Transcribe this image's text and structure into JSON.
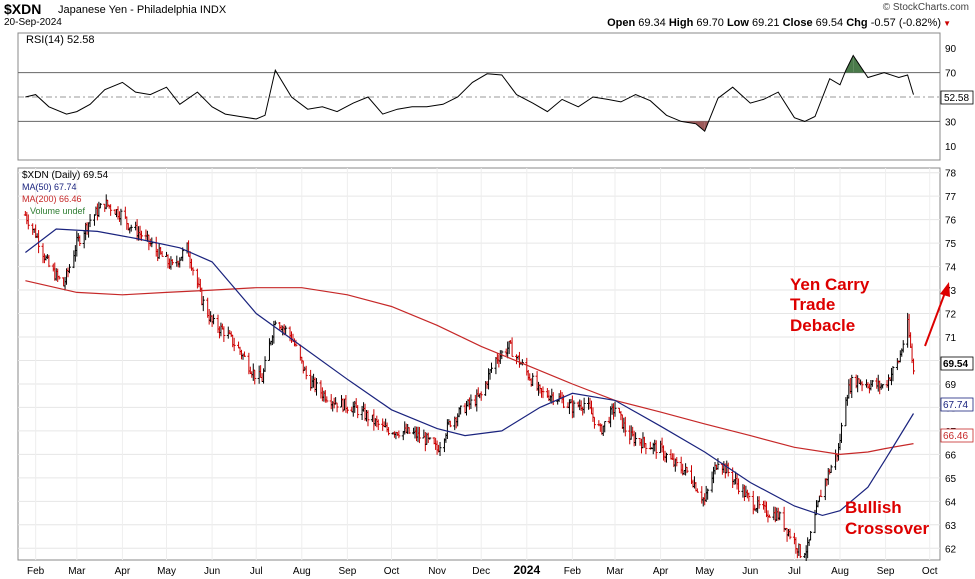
{
  "header": {
    "symbol": "$XDN",
    "description": "Japanese Yen - Philadelphia INDX",
    "date": "20-Sep-2024",
    "brand": "© StockCharts.com",
    "ohlc": {
      "open_label": "Open",
      "open": "69.34",
      "high_label": "High",
      "high": "69.70",
      "low_label": "Low",
      "low": "69.21",
      "close_label": "Close",
      "close": "69.54",
      "chg_label": "Chg",
      "chg": "-0.57 (-0.82%)"
    },
    "down_color": "#cc0000"
  },
  "chart_data": [
    {
      "type": "line",
      "name": "RSI panel",
      "legend": "RSI(14) 52.58",
      "current_label": "52.58",
      "yticks": [
        "90",
        "70",
        "50",
        "30",
        "10"
      ],
      "ylim": [
        0,
        100
      ],
      "overbought": 70,
      "oversold": 30,
      "x": [
        "2023-01-25",
        "2023-02-01",
        "2023-02-10",
        "2023-02-22",
        "2023-03-01",
        "2023-03-10",
        "2023-03-20",
        "2023-04-01",
        "2023-04-10",
        "2023-04-20",
        "2023-05-01",
        "2023-05-10",
        "2023-05-22",
        "2023-06-01",
        "2023-06-10",
        "2023-06-20",
        "2023-07-01",
        "2023-07-07",
        "2023-07-14",
        "2023-07-25",
        "2023-08-05",
        "2023-08-15",
        "2023-08-25",
        "2023-09-05",
        "2023-09-15",
        "2023-09-25",
        "2023-10-05",
        "2023-10-15",
        "2023-10-25",
        "2023-11-05",
        "2023-11-15",
        "2023-11-25",
        "2023-12-05",
        "2023-12-15",
        "2023-12-25",
        "2024-01-05",
        "2024-01-15",
        "2024-01-25",
        "2024-02-05",
        "2024-02-15",
        "2024-02-25",
        "2024-03-05",
        "2024-03-15",
        "2024-03-25",
        "2024-04-05",
        "2024-04-15",
        "2024-04-25",
        "2024-05-01",
        "2024-05-10",
        "2024-05-20",
        "2024-06-01",
        "2024-06-10",
        "2024-06-20",
        "2024-07-01",
        "2024-07-08",
        "2024-07-15",
        "2024-07-25",
        "2024-08-01",
        "2024-08-05",
        "2024-08-10",
        "2024-08-20",
        "2024-08-31",
        "2024-09-10",
        "2024-09-16",
        "2024-09-20"
      ],
      "values": [
        50,
        52,
        42,
        36,
        38,
        44,
        56,
        62,
        54,
        52,
        58,
        44,
        54,
        42,
        36,
        34,
        32,
        35,
        72,
        50,
        40,
        42,
        38,
        45,
        50,
        36,
        40,
        42,
        42,
        44,
        50,
        62,
        69,
        68,
        52,
        45,
        38,
        48,
        42,
        50,
        48,
        46,
        52,
        47,
        35,
        30,
        28,
        22,
        49,
        58,
        45,
        48,
        54,
        33,
        30,
        34,
        65,
        60,
        72,
        84,
        66,
        70,
        66,
        68,
        52
      ]
    },
    {
      "type": "line",
      "name": "price panel",
      "legend_price": "$XDN (Daily) 69.54",
      "legend_ma50": "MA(50) 67.74",
      "legend_ma200": "MA(200) 66.46",
      "legend_volume": "Volume undef",
      "current_price_label": "69.54",
      "ma50_label": "67.74",
      "ma200_label": "66.46",
      "yticks": [
        "78",
        "77",
        "76",
        "75",
        "74",
        "73",
        "72",
        "71",
        "70",
        "69",
        "68",
        "67",
        "66",
        "65",
        "64",
        "63",
        "62"
      ],
      "ylim": [
        61.5,
        78.2
      ],
      "xticks": [
        "Feb",
        "Mar",
        "Apr",
        "May",
        "Jun",
        "Jul",
        "Aug",
        "Sep",
        "Oct",
        "Nov",
        "Dec",
        "2024",
        "Feb",
        "Mar",
        "Apr",
        "May",
        "Jun",
        "Jul",
        "Aug",
        "Sep",
        "Oct"
      ],
      "xtick_dates": [
        "2023-02-01",
        "2023-03-01",
        "2023-04-01",
        "2023-05-01",
        "2023-06-01",
        "2023-07-01",
        "2023-08-01",
        "2023-09-01",
        "2023-10-01",
        "2023-11-01",
        "2023-12-01",
        "2024-01-01",
        "2024-02-01",
        "2024-03-01",
        "2024-04-01",
        "2024-05-01",
        "2024-06-01",
        "2024-07-01",
        "2024-08-01",
        "2024-09-01",
        "2024-10-01"
      ],
      "colors": {
        "up": "#000000",
        "down": "#cc0000",
        "ma50": "#1a237e",
        "ma200": "#c62828",
        "annotation": "#dd0000"
      },
      "price": {
        "x": [
          "2023-01-25",
          "2023-02-01",
          "2023-02-10",
          "2023-02-20",
          "2023-03-01",
          "2023-03-10",
          "2023-03-20",
          "2023-04-01",
          "2023-04-05",
          "2023-04-15",
          "2023-04-25",
          "2023-05-05",
          "2023-05-15",
          "2023-05-25",
          "2023-06-01",
          "2023-06-10",
          "2023-06-20",
          "2023-06-30",
          "2023-07-05",
          "2023-07-14",
          "2023-07-25",
          "2023-08-05",
          "2023-08-15",
          "2023-08-25",
          "2023-09-05",
          "2023-09-15",
          "2023-09-25",
          "2023-10-05",
          "2023-10-15",
          "2023-10-25",
          "2023-11-01",
          "2023-11-10",
          "2023-11-20",
          "2023-12-01",
          "2023-12-10",
          "2023-12-20",
          "2024-01-01",
          "2024-01-10",
          "2024-01-20",
          "2024-02-01",
          "2024-02-10",
          "2024-02-20",
          "2024-03-01",
          "2024-03-10",
          "2024-03-20",
          "2024-04-01",
          "2024-04-10",
          "2024-04-20",
          "2024-05-01",
          "2024-05-10",
          "2024-05-20",
          "2024-06-01",
          "2024-06-10",
          "2024-06-20",
          "2024-07-01",
          "2024-07-05",
          "2024-07-10",
          "2024-07-20",
          "2024-07-31",
          "2024-08-05",
          "2024-08-10",
          "2024-08-20",
          "2024-08-31",
          "2024-09-10",
          "2024-09-16",
          "2024-09-20"
        ],
        "values": [
          76.2,
          75.4,
          74.0,
          73.2,
          75.0,
          76.0,
          76.7,
          76.2,
          75.8,
          75.3,
          74.6,
          74.0,
          74.8,
          72.6,
          71.6,
          71.2,
          70.4,
          69.4,
          69.2,
          71.8,
          71.0,
          69.2,
          68.6,
          68.2,
          68.0,
          67.6,
          67.1,
          67.0,
          66.9,
          66.6,
          66.2,
          67.4,
          68.0,
          68.5,
          70.0,
          70.6,
          69.5,
          68.6,
          68.5,
          68.0,
          68.2,
          67.0,
          68.0,
          66.8,
          66.5,
          66.2,
          65.6,
          65.2,
          64.0,
          65.8,
          65.0,
          64.0,
          63.6,
          63.4,
          62.3,
          61.8,
          62.0,
          64.6,
          66.2,
          68.5,
          69.2,
          69.0,
          68.9,
          70.0,
          71.5,
          69.54
        ]
      },
      "ma50": {
        "x": [
          "2023-01-25",
          "2023-02-15",
          "2023-03-15",
          "2023-04-10",
          "2023-05-10",
          "2023-06-01",
          "2023-07-01",
          "2023-08-01",
          "2023-09-01",
          "2023-10-01",
          "2023-11-01",
          "2023-11-20",
          "2023-12-15",
          "2024-01-10",
          "2024-02-01",
          "2024-03-01",
          "2024-04-01",
          "2024-05-01",
          "2024-06-01",
          "2024-07-01",
          "2024-07-20",
          "2024-08-01",
          "2024-08-20",
          "2024-09-01",
          "2024-09-20"
        ],
        "values": [
          74.6,
          75.6,
          75.5,
          75.2,
          74.8,
          74.2,
          72.0,
          70.6,
          69.2,
          67.9,
          67.1,
          66.8,
          67.0,
          68.0,
          68.6,
          68.3,
          67.2,
          66.1,
          64.8,
          63.8,
          63.4,
          63.6,
          64.6,
          65.8,
          67.74
        ]
      },
      "ma200": {
        "x": [
          "2023-01-25",
          "2023-03-01",
          "2023-04-01",
          "2023-05-01",
          "2023-06-01",
          "2023-07-01",
          "2023-08-01",
          "2023-09-01",
          "2023-10-01",
          "2023-11-01",
          "2023-12-01",
          "2024-01-01",
          "2024-02-01",
          "2024-03-01",
          "2024-04-01",
          "2024-05-01",
          "2024-06-01",
          "2024-07-01",
          "2024-08-01",
          "2024-08-20",
          "2024-09-01",
          "2024-09-20"
        ],
        "values": [
          73.4,
          72.9,
          72.8,
          72.9,
          73.0,
          73.1,
          73.1,
          72.8,
          72.3,
          71.5,
          70.6,
          69.8,
          69.0,
          68.3,
          67.8,
          67.3,
          66.8,
          66.3,
          66.0,
          66.1,
          66.25,
          66.46
        ]
      },
      "annotations": [
        {
          "lines": [
            "Yen Carry",
            "Trade",
            "Debacle"
          ]
        },
        {
          "lines": [
            "Bullish",
            "Crossover"
          ]
        }
      ]
    }
  ]
}
